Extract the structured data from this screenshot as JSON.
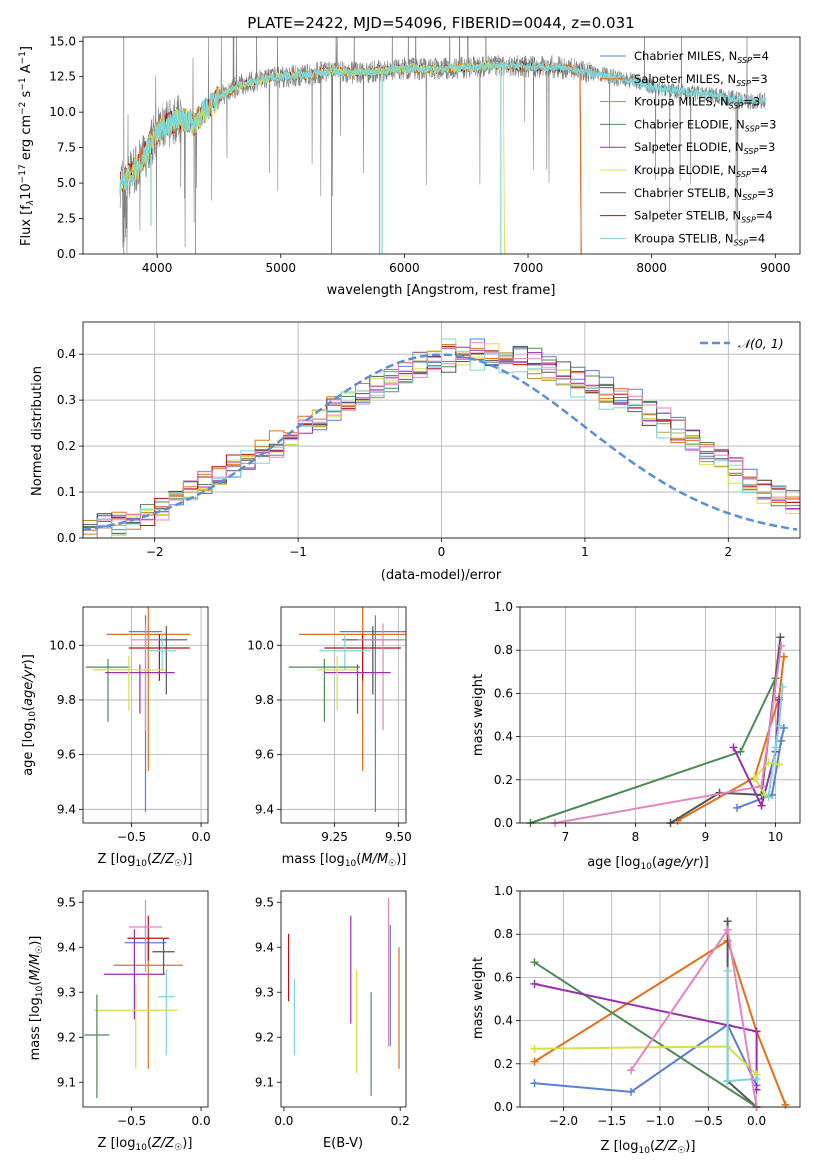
{
  "figure_title": "PLATE=2422, MJD=54096, FIBERID=0044, z=0.031",
  "colors": {
    "chabrier_miles": "#5b7fd6",
    "salpeter_miles": "#e0701c",
    "kroupa_miles": "#c08a2a",
    "chabrier_elodie": "#4f8a55",
    "salpeter_elodie": "#9b2fae",
    "kroupa_elodie": "#d6e04a",
    "chabrier_stelib": "#555555",
    "salpeter_stelib": "#b3121a",
    "kroupa_stelib": "#7fd6d6",
    "pink": "#e585c0",
    "data_gray": "#808080",
    "normal_curve": "#5b8fd6"
  },
  "chart_data": [
    {
      "id": "spectrum",
      "type": "line",
      "title": "PLATE=2422, MJD=54096, FIBERID=0044, z=0.031",
      "xlabel": "wavelength [Angstrom, rest frame]",
      "ylabel": "Flux [f_λ 10⁻¹⁷ erg cm⁻² s⁻¹ A⁻¹]",
      "xlim": [
        3400,
        9200
      ],
      "ylim": [
        0,
        15.3
      ],
      "xticks": [
        "4000",
        "5000",
        "6000",
        "7000",
        "8000",
        "9000"
      ],
      "xtick_values": [
        4000,
        5000,
        6000,
        7000,
        8000,
        9000
      ],
      "yticks": [
        "0.0",
        "2.5",
        "5.0",
        "7.5",
        "10.0",
        "12.5",
        "15.0"
      ],
      "ytick_values": [
        0,
        2.5,
        5.0,
        7.5,
        10.0,
        12.5,
        15.0
      ],
      "legend_position": "top-right",
      "legend": [
        "Chabrier MILES, N_SSP=4",
        "Salpeter MILES, N_SSP=3",
        "Kroupa MILES, N_SSP=3",
        "Chabrier ELODIE, N_SSP=3",
        "Salpeter ELODIE, N_SSP=3",
        "Kroupa ELODIE, N_SSP=4",
        "Chabrier STELIB, N_SSP=3",
        "Salpeter STELIB, N_SSP=4",
        "Kroupa STELIB, N_SSP=4"
      ],
      "continuum": {
        "x": [
          3700,
          3750,
          3800,
          3850,
          3900,
          3950,
          4000,
          4100,
          4200,
          4300,
          4400,
          4500,
          4600,
          4700,
          4800,
          4900,
          5000,
          5200,
          5400,
          5600,
          5800,
          6000,
          6200,
          6400,
          6600,
          6800,
          7000,
          7200,
          7400,
          7600,
          7800,
          8000,
          8200,
          8400,
          8600,
          8800
        ],
        "y": [
          5.0,
          5.3,
          5.8,
          6.2,
          7.0,
          7.8,
          8.6,
          9.2,
          9.6,
          9.2,
          10.2,
          11.0,
          11.6,
          12.0,
          12.2,
          12.4,
          12.5,
          12.6,
          12.9,
          12.8,
          12.9,
          13.1,
          13.0,
          13.1,
          13.2,
          13.3,
          13.2,
          13.2,
          13.0,
          12.6,
          12.3,
          11.8,
          11.5,
          11.3,
          11.0,
          10.8
        ]
      },
      "model_cutoffs": {
        "kroupa_elodie": 6800,
        "salpeter_stelib": 7420,
        "salpeter_miles": 7420
      }
    },
    {
      "id": "residuals",
      "type": "bar",
      "xlabel": "(data-model)/error",
      "ylabel": "Normed distribution",
      "xlim": [
        -2.5,
        2.5
      ],
      "ylim": [
        0,
        0.47
      ],
      "xticks": [
        "−2",
        "−1",
        "0",
        "1",
        "2"
      ],
      "xtick_values": [
        -2,
        -1,
        0,
        1,
        2
      ],
      "yticks": [
        "0.0",
        "0.1",
        "0.2",
        "0.3",
        "0.4"
      ],
      "ytick_values": [
        0,
        0.1,
        0.2,
        0.3,
        0.4
      ],
      "legend": [
        "𝒩(0, 1)"
      ],
      "legend_position": "top-right",
      "bin_width": 0.1,
      "bin_start": -2.5,
      "series_values": [
        [
          0.02,
          0.03,
          0.03,
          0.04,
          0.05,
          0.06,
          0.09,
          0.11,
          0.12,
          0.14,
          0.15,
          0.17,
          0.18,
          0.2,
          0.22,
          0.24,
          0.26,
          0.28,
          0.3,
          0.31,
          0.33,
          0.34,
          0.36,
          0.37,
          0.38,
          0.38,
          0.4,
          0.41,
          0.39,
          0.4,
          0.4,
          0.39,
          0.38,
          0.37,
          0.36,
          0.34,
          0.33,
          0.31,
          0.3,
          0.28,
          0.26,
          0.24,
          0.21,
          0.19,
          0.17,
          0.15,
          0.13,
          0.11,
          0.09,
          0.08,
          0.07
        ],
        [
          0.02,
          0.03,
          0.04,
          0.04,
          0.05,
          0.07,
          0.08,
          0.1,
          0.12,
          0.14,
          0.16,
          0.17,
          0.19,
          0.21,
          0.23,
          0.25,
          0.27,
          0.29,
          0.3,
          0.32,
          0.34,
          0.35,
          0.37,
          0.38,
          0.39,
          0.4,
          0.41,
          0.4,
          0.4,
          0.39,
          0.39,
          0.38,
          0.37,
          0.36,
          0.34,
          0.33,
          0.32,
          0.3,
          0.28,
          0.26,
          0.25,
          0.23,
          0.21,
          0.19,
          0.17,
          0.15,
          0.13,
          0.11,
          0.09,
          0.08,
          0.06
        ],
        [
          0.02,
          0.02,
          0.03,
          0.04,
          0.06,
          0.07,
          0.09,
          0.1,
          0.12,
          0.13,
          0.15,
          0.17,
          0.18,
          0.2,
          0.22,
          0.24,
          0.26,
          0.28,
          0.3,
          0.32,
          0.33,
          0.35,
          0.36,
          0.38,
          0.39,
          0.41,
          0.4,
          0.39,
          0.4,
          0.38,
          0.38,
          0.37,
          0.36,
          0.35,
          0.33,
          0.32,
          0.3,
          0.29,
          0.27,
          0.25,
          0.24,
          0.22,
          0.2,
          0.18,
          0.16,
          0.14,
          0.12,
          0.1,
          0.09,
          0.07,
          0.06
        ]
      ],
      "normal_curve": {
        "mean": 0,
        "sigma": 1
      }
    },
    {
      "id": "age_vs_Z",
      "type": "scatter",
      "xlabel": "Z [log₁₀(Z/Z☉)]",
      "ylabel": "age  [log₁₀(age/yr)]",
      "xlim": [
        -0.85,
        0.05
      ],
      "ylim": [
        9.35,
        10.14
      ],
      "xticks": [
        "−0.5",
        "0.0"
      ],
      "xtick_values": [
        -0.5,
        0.0
      ],
      "yticks": [
        "9.4",
        "9.6",
        "9.8",
        "10.0"
      ],
      "ytick_values": [
        9.4,
        9.6,
        9.8,
        10.0
      ],
      "points": [
        {
          "x": -0.4,
          "y": 10.05,
          "xerr": 0.12,
          "yerr_lo": 0.66,
          "yerr_hi": 0.06,
          "color": "chabrier_miles"
        },
        {
          "x": -0.38,
          "y": 10.04,
          "xerr": 0.3,
          "yerr_lo": 0.5,
          "yerr_hi": 0.1,
          "color": "salpeter_miles"
        },
        {
          "x": -0.25,
          "y": 10.02,
          "xerr": 0.15,
          "yerr_lo": 0.2,
          "yerr_hi": 0.05,
          "color": "chabrier_stelib"
        },
        {
          "x": -0.3,
          "y": 9.99,
          "xerr": 0.22,
          "yerr_lo": 0.12,
          "yerr_hi": 0.05,
          "color": "salpeter_stelib"
        },
        {
          "x": -0.28,
          "y": 9.98,
          "xerr": 0.1,
          "yerr_lo": 0.07,
          "yerr_hi": 0.06,
          "color": "kroupa_stelib"
        },
        {
          "x": -0.4,
          "y": 10.02,
          "xerr": 0.1,
          "yerr_lo": 0.33,
          "yerr_hi": 0.06,
          "color": "pink"
        },
        {
          "x": -0.67,
          "y": 9.92,
          "xerr": 0.16,
          "yerr_lo": 0.2,
          "yerr_hi": 0.03,
          "color": "chabrier_elodie"
        },
        {
          "x": -0.44,
          "y": 9.9,
          "xerr": 0.25,
          "yerr_lo": 0.15,
          "yerr_hi": 0.03,
          "color": "salpeter_elodie"
        },
        {
          "x": -0.52,
          "y": 9.91,
          "xerr": 0.26,
          "yerr_lo": 0.15,
          "yerr_hi": 0.05,
          "color": "kroupa_elodie"
        }
      ]
    },
    {
      "id": "age_vs_mass",
      "type": "scatter",
      "xlabel": "mass [log₁₀(M/M☉)]",
      "ylabel": "",
      "xlim": [
        9.04,
        9.53
      ],
      "ylim": [
        9.35,
        10.14
      ],
      "xticks": [
        "9.25",
        "9.50"
      ],
      "xtick_values": [
        9.25,
        9.5
      ],
      "yticks": [
        "9.4",
        "9.6",
        "9.8",
        "10.0"
      ],
      "ytick_values": [
        9.4,
        9.6,
        9.8,
        10.0
      ],
      "points": [
        {
          "x": 9.41,
          "y": 10.05,
          "xerr": 0.14,
          "yerr_lo": 0.66,
          "yerr_hi": 0.06,
          "color": "chabrier_miles"
        },
        {
          "x": 9.36,
          "y": 10.04,
          "xerr": 0.25,
          "yerr_lo": 0.5,
          "yerr_hi": 0.1,
          "color": "salpeter_miles"
        },
        {
          "x": 9.4,
          "y": 10.02,
          "xerr": 0.12,
          "yerr_lo": 0.2,
          "yerr_hi": 0.05,
          "color": "chabrier_stelib"
        },
        {
          "x": 9.36,
          "y": 9.99,
          "xerr": 0.15,
          "yerr_lo": 0.12,
          "yerr_hi": 0.05,
          "color": "salpeter_stelib"
        },
        {
          "x": 9.29,
          "y": 9.98,
          "xerr": 0.1,
          "yerr_lo": 0.07,
          "yerr_hi": 0.06,
          "color": "kroupa_stelib"
        },
        {
          "x": 9.44,
          "y": 10.02,
          "xerr": 0.1,
          "yerr_lo": 0.33,
          "yerr_hi": 0.06,
          "color": "pink"
        },
        {
          "x": 9.21,
          "y": 9.92,
          "xerr": 0.14,
          "yerr_lo": 0.2,
          "yerr_hi": 0.03,
          "color": "chabrier_elodie"
        },
        {
          "x": 9.34,
          "y": 9.9,
          "xerr": 0.13,
          "yerr_lo": 0.15,
          "yerr_hi": 0.03,
          "color": "salpeter_elodie"
        },
        {
          "x": 9.26,
          "y": 9.91,
          "xerr": 0.08,
          "yerr_lo": 0.15,
          "yerr_hi": 0.05,
          "color": "kroupa_elodie"
        }
      ]
    },
    {
      "id": "weight_vs_age",
      "type": "line",
      "xlabel": "age  [log₁₀(age/yr)]",
      "ylabel": "mass weight",
      "xlim": [
        6.35,
        10.35
      ],
      "ylim": [
        0,
        1.0
      ],
      "xticks": [
        "7",
        "8",
        "9",
        "10"
      ],
      "xtick_values": [
        7,
        8,
        9,
        10
      ],
      "yticks": [
        "0.0",
        "0.2",
        "0.4",
        "0.6",
        "0.8",
        "1.0"
      ],
      "ytick_values": [
        0,
        0.2,
        0.4,
        0.6,
        0.8,
        1.0
      ],
      "series": [
        {
          "color": "chabrier_miles",
          "x": [
            9.45,
            9.95,
            10.08,
            10.12
          ],
          "y": [
            0.07,
            0.13,
            0.38,
            0.44
          ]
        },
        {
          "color": "salpeter_miles",
          "x": [
            8.6,
            9.7,
            10.05,
            10.12
          ],
          "y": [
            0.01,
            0.21,
            0.58,
            0.77
          ]
        },
        {
          "color": "chabrier_stelib",
          "x": [
            8.5,
            9.2,
            9.8,
            10.07
          ],
          "y": [
            0.0,
            0.14,
            0.13,
            0.86
          ]
        },
        {
          "color": "chabrier_elodie",
          "x": [
            6.5,
            9.5,
            10.0
          ],
          "y": [
            0.0,
            0.33,
            0.67
          ]
        },
        {
          "color": "salpeter_elodie",
          "x": [
            9.4,
            9.8,
            10.0,
            10.05
          ],
          "y": [
            0.35,
            0.08,
            0.33,
            0.57
          ]
        },
        {
          "color": "kroupa_elodie",
          "x": [
            9.85,
            9.7,
            9.9,
            10.05
          ],
          "y": [
            0.13,
            0.21,
            0.28,
            0.27
          ]
        },
        {
          "color": "kroupa_stelib",
          "x": [
            9.9,
            10.0,
            10.05,
            10.1
          ],
          "y": [
            0.12,
            0.35,
            0.45,
            0.63
          ]
        },
        {
          "color": "pink",
          "x": [
            6.85,
            9.8,
            10.08
          ],
          "y": [
            0.0,
            0.17,
            0.82
          ]
        }
      ]
    },
    {
      "id": "mass_vs_Z",
      "type": "scatter",
      "xlabel": "Z [log₁₀(Z/Z☉)]",
      "ylabel": "mass [log₁₀(M/M☉)]",
      "xlim": [
        -0.85,
        0.05
      ],
      "ylim": [
        9.045,
        9.525
      ],
      "xticks": [
        "−0.5",
        "0.0"
      ],
      "xtick_values": [
        -0.5,
        0.0
      ],
      "yticks": [
        "9.1",
        "9.2",
        "9.3",
        "9.4",
        "9.5"
      ],
      "ytick_values": [
        9.1,
        9.2,
        9.3,
        9.4,
        9.5
      ],
      "points": [
        {
          "x": -0.4,
          "y": 9.41,
          "xerr": 0.15,
          "yerr_lo": 0.04,
          "yerr_hi": 0.04,
          "color": "chabrier_miles"
        },
        {
          "x": -0.38,
          "y": 9.36,
          "xerr": 0.25,
          "yerr_lo": 0.23,
          "yerr_hi": 0.05,
          "color": "salpeter_miles"
        },
        {
          "x": -0.38,
          "y": 9.42,
          "xerr": 0.15,
          "yerr_lo": 0.05,
          "yerr_hi": 0.05,
          "color": "salpeter_stelib"
        },
        {
          "x": -0.27,
          "y": 9.39,
          "xerr": 0.08,
          "yerr_lo": 0.05,
          "yerr_hi": 0.03,
          "color": "chabrier_stelib"
        },
        {
          "x": -0.4,
          "y": 9.445,
          "xerr": 0.12,
          "yerr_lo": 0.1,
          "yerr_hi": 0.06,
          "color": "pink"
        },
        {
          "x": -0.25,
          "y": 9.29,
          "xerr": 0.06,
          "yerr_lo": 0.13,
          "yerr_hi": 0.06,
          "color": "kroupa_stelib"
        },
        {
          "x": -0.48,
          "y": 9.34,
          "xerr": 0.22,
          "yerr_lo": 0.1,
          "yerr_hi": 0.1,
          "color": "salpeter_elodie"
        },
        {
          "x": -0.47,
          "y": 9.26,
          "xerr": 0.3,
          "yerr_lo": 0.13,
          "yerr_hi": 0.06,
          "color": "kroupa_elodie"
        },
        {
          "x": -0.75,
          "y": 9.205,
          "xerr": 0.09,
          "yerr_lo": 0.14,
          "yerr_hi": 0.09,
          "color": "chabrier_elodie"
        }
      ]
    },
    {
      "id": "mass_vs_ebv",
      "type": "scatter",
      "xlabel": "E(B-V)",
      "ylabel": "",
      "xlim": [
        -0.005,
        0.21
      ],
      "ylim": [
        9.045,
        9.525
      ],
      "xticks": [
        "0.0",
        "0.2"
      ],
      "xtick_values": [
        0.0,
        0.2
      ],
      "yticks": [
        "9.1",
        "9.2",
        "9.3",
        "9.4",
        "9.5"
      ],
      "ytick_values": [
        9.1,
        9.2,
        9.3,
        9.4,
        9.5
      ],
      "points": [
        {
          "x": 0.008,
          "y": 9.36,
          "yerr_lo": 0.08,
          "yerr_hi": 0.07,
          "color": "salpeter_stelib"
        },
        {
          "x": 0.018,
          "y": 9.25,
          "yerr_lo": 0.09,
          "yerr_hi": 0.08,
          "color": "kroupa_stelib"
        },
        {
          "x": 0.115,
          "y": 9.39,
          "yerr_lo": 0.16,
          "yerr_hi": 0.08,
          "color": "salpeter_elodie"
        },
        {
          "x": 0.125,
          "y": 9.25,
          "yerr_lo": 0.13,
          "yerr_hi": 0.1,
          "color": "kroupa_elodie"
        },
        {
          "x": 0.18,
          "y": 9.34,
          "yerr_lo": 0.16,
          "yerr_hi": 0.17,
          "color": "pink"
        },
        {
          "x": 0.183,
          "y": 9.31,
          "yerr_lo": 0.13,
          "yerr_hi": 0.14,
          "color": "chabrier_miles"
        },
        {
          "x": 0.15,
          "y": 9.18,
          "yerr_lo": 0.11,
          "yerr_hi": 0.12,
          "color": "chabrier_elodie"
        },
        {
          "x": 0.198,
          "y": 9.26,
          "yerr_lo": 0.13,
          "yerr_hi": 0.14,
          "color": "salpeter_miles"
        }
      ]
    },
    {
      "id": "weight_vs_Z",
      "type": "line",
      "xlabel": "Z [log₁₀(Z/Z☉)]",
      "ylabel": "mass weight",
      "xlim": [
        -2.45,
        0.45
      ],
      "ylim": [
        0,
        1.0
      ],
      "xticks": [
        "−2.0",
        "−1.5",
        "−1.0",
        "−0.5",
        "0.0"
      ],
      "xtick_values": [
        -2.0,
        -1.5,
        -1.0,
        -0.5,
        0.0
      ],
      "yticks": [
        "0.0",
        "0.2",
        "0.4",
        "0.6",
        "0.8",
        "1.0"
      ],
      "ytick_values": [
        0,
        0.2,
        0.4,
        0.6,
        0.8,
        1.0
      ],
      "series": [
        {
          "color": "chabrier_miles",
          "x": [
            -2.3,
            -1.3,
            -0.3,
            0.0
          ],
          "y": [
            0.11,
            0.07,
            0.38,
            0.1
          ]
        },
        {
          "color": "salpeter_miles",
          "x": [
            -2.3,
            -0.3,
            0.0,
            0.3
          ],
          "y": [
            0.21,
            0.77,
            0.35,
            0.01
          ]
        },
        {
          "color": "chabrier_stelib",
          "x": [
            -0.3,
            -0.3,
            0.0
          ],
          "y": [
            0.86,
            0.12,
            0.0
          ]
        },
        {
          "color": "chabrier_elodie",
          "x": [
            -2.3,
            0.0
          ],
          "y": [
            0.67,
            0.0
          ]
        },
        {
          "color": "salpeter_elodie",
          "x": [
            -2.3,
            0.0,
            0.0
          ],
          "y": [
            0.57,
            0.35,
            0.08
          ]
        },
        {
          "color": "kroupa_elodie",
          "x": [
            -2.3,
            -0.3,
            0.0
          ],
          "y": [
            0.27,
            0.28,
            0.15
          ]
        },
        {
          "color": "kroupa_stelib",
          "x": [
            -0.3,
            -0.3,
            0.0
          ],
          "y": [
            0.63,
            0.12,
            0.13
          ]
        },
        {
          "color": "pink",
          "x": [
            -1.3,
            -0.3,
            0.0
          ],
          "y": [
            0.17,
            0.82,
            0.0
          ]
        }
      ]
    }
  ]
}
